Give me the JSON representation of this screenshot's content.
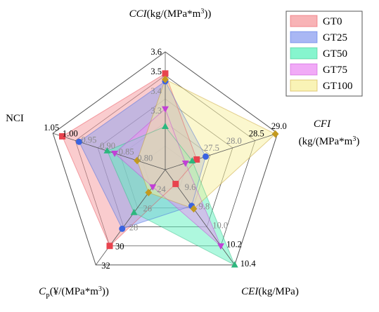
{
  "chart_data": {
    "type": "radar",
    "axes": [
      {
        "key": "cci",
        "title_parts": [
          {
            "text": "CCI",
            "italic": true
          },
          {
            "text": "(kg/(MPa*m"
          },
          {
            "text": "3",
            "sup": true
          },
          {
            "text": "))"
          }
        ],
        "ticks": [
          "3.6",
          "3.5",
          "3.4",
          "3.3"
        ],
        "range": [
          3.0,
          3.6
        ]
      },
      {
        "key": "cfi",
        "title_parts": [
          {
            "text": "CFI",
            "italic": true
          }
        ],
        "title_line2": "(kg/(MPa*m",
        "title_line2_sup": "3",
        "title_line2_end": ")",
        "ticks": [
          "29.0",
          "28.5",
          "28.0",
          "27.5"
        ],
        "range": [
          26.5,
          29.0
        ]
      },
      {
        "key": "cei",
        "title_parts": [
          {
            "text": "CEI",
            "italic": true
          },
          {
            "text": "(kg/MPa)"
          }
        ],
        "ticks": [
          "10.4",
          "10.2",
          "10.0",
          "9.8",
          "9.6"
        ],
        "range": [
          9.4,
          10.4
        ]
      },
      {
        "key": "cp",
        "title_parts": [
          {
            "text": "C",
            "italic": true
          },
          {
            "text": "P",
            "sub": true
          },
          {
            "text": "(¥/(MPa*m"
          },
          {
            "text": "3",
            "sup": true
          },
          {
            "text": "))"
          }
        ],
        "ticks": [
          "32",
          "30",
          "28",
          "26",
          "24"
        ],
        "range": [
          22,
          32
        ]
      },
      {
        "key": "nci",
        "title_parts": [
          {
            "text": "NCI"
          }
        ],
        "ticks": [
          "1.05",
          "1.00",
          "0.95",
          "0.90",
          "0.85",
          "0.80"
        ],
        "range": [
          0.75,
          1.05
        ]
      }
    ],
    "series": [
      {
        "name": "GT0",
        "color": "#e8434e",
        "fill": "#f59a9e",
        "marker": "square",
        "values": [
          3.49,
          27.2,
          9.55,
          30.0,
          1.025
        ]
      },
      {
        "name": "GT25",
        "color": "#3b63e0",
        "fill": "#8c9ff0",
        "marker": "circle",
        "values": [
          3.45,
          27.4,
          9.78,
          28.2,
          0.98
        ]
      },
      {
        "name": "GT50",
        "color": "#2cb77e",
        "fill": "#5ef2be",
        "marker": "triangle",
        "values": [
          3.22,
          27.1,
          10.4,
          26.5,
          0.905
        ]
      },
      {
        "name": "GT75",
        "color": "#c23fd6",
        "fill": "#ec8df4",
        "marker": "triangle-down",
        "values": [
          3.31,
          26.95,
          10.2,
          23.8,
          0.885
        ]
      },
      {
        "name": "GT100",
        "color": "#c49a1f",
        "fill": "#f7ef9e",
        "marker": "diamond",
        "values": [
          3.46,
          28.95,
          9.81,
          24.4,
          0.825
        ]
      }
    ],
    "legend_position": "top-right",
    "grid": true
  }
}
